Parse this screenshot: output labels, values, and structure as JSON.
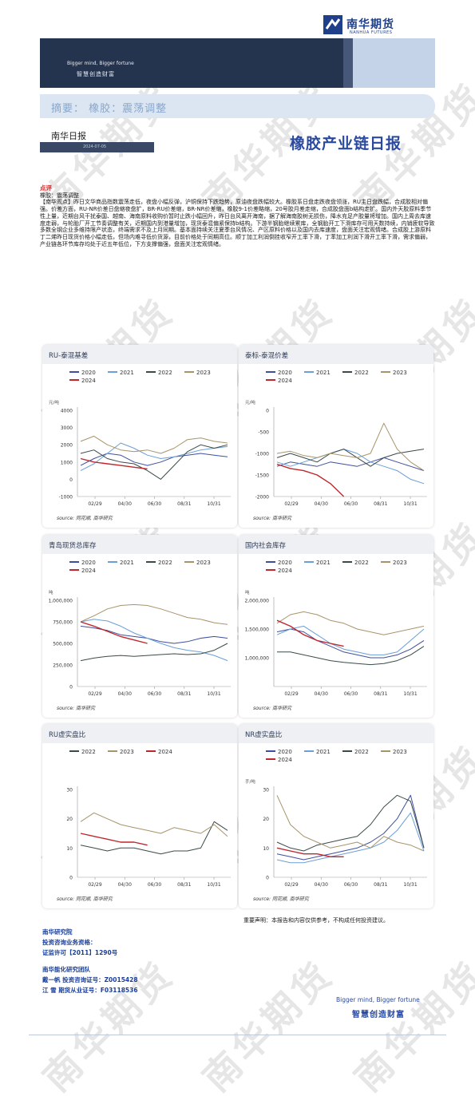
{
  "header": {
    "slogan_en": "Bigger mind, Bigger fortune",
    "slogan_cn": "智慧创造财富",
    "logo_cn": "南华期货",
    "logo_en": "NANHUA FUTURES"
  },
  "summary": {
    "text": "摘要：  橡胶：震荡调整"
  },
  "report": {
    "daily_label": "南华日报",
    "date": "2024-07-05",
    "title": "橡胶产业链日报"
  },
  "commentary": {
    "label": "点评",
    "line1": "橡胶：震荡调整",
    "body": "【南华观点】昨日文华商品指数震荡走低，夜盘小幅反弹，沪铜保持下跌趋势，原油夜盘跌幅较大。橡胶系日盘走跌夜盘领涨，RU主日盘跌幅，合成胶相对偏强。价差方面，RU-NR价差日盘缩夜盘扩，BR-RU价差缩，BR-NR价差缩，橡胶9-1价差略缩，20号胶月差走缩，合成胶盘面b结构走扩。国内外天胶原料季节性上量，近期台风干扰泰国、越南、海南原料收购价暂时止跌小幅回升，昨日台风离开海南，据了解海南胶树无损伤，降水充足产胶量将增加。国内上周去库速度走弱，与轮胎厂开工节奏调整有关，近期国内到港量增加，现货泰混偏紧保持b结构。下游半钢胎继续累库，全钢胎开工下滑库存可用天数持续，内销疲软导致多数全钢企业多维持限产状态，终端需求不及上月同期。基本面持续关注夏季台风情况、产区原料价格以及国内去库速度，盘面关注宏观情绪。合成胶上游原料丁二烯昨日现货价格小幅走低，但场内难寻低价货源，目前价格处于同期高位。顺丁加工利润倒挂收窄开工率下滑，丁苯加工利润下滑开工率下滑，需求偏弱，产业链各环节库存均处于近五年低位，下方支撑偏强，盘面关注宏观情绪。"
  },
  "charts": [
    {
      "title": "RU-泰混基差",
      "source": "source:  同花顺, 南华研究",
      "chart_data": {
        "type": "line",
        "unit": "元/吨",
        "ylim": [
          -1000,
          4000
        ],
        "yticks": [
          "4000",
          "3000",
          "2000",
          "1000",
          "0",
          "-1000"
        ],
        "xticks": [
          "02/29",
          "04/30",
          "06/30",
          "08/31",
          "10/31"
        ],
        "series": [
          {
            "name": "2020",
            "color": "#3f4fa0",
            "values": [
              800,
              1200,
              1500,
              1400,
              1000,
              800,
              1000,
              1300,
              1400,
              1500,
              1400,
              1300
            ]
          },
          {
            "name": "2021",
            "color": "#6a9fd8",
            "values": [
              500,
              900,
              1500,
              2100,
              1800,
              1400,
              1200,
              1300,
              1500,
              1700,
              1800,
              1900
            ]
          },
          {
            "name": "2022",
            "color": "#3a4a4a",
            "values": [
              1500,
              1700,
              1200,
              1000,
              900,
              500,
              0,
              800,
              1600,
              2000,
              1800,
              2000
            ]
          },
          {
            "name": "2023",
            "color": "#a8946a",
            "values": [
              2200,
              2500,
              2000,
              1700,
              1600,
              1700,
              1500,
              1800,
              2300,
              2400,
              2200,
              2100
            ]
          },
          {
            "name": "2024",
            "color": "#c0272d",
            "values": [
              1200,
              1000,
              900,
              800,
              700,
              600
            ]
          }
        ]
      }
    },
    {
      "title": "泰标-泰混价差",
      "source": "source:  南华研究",
      "chart_data": {
        "type": "line",
        "unit": "元/吨",
        "ylim": [
          -2000,
          0
        ],
        "yticks": [
          "0",
          "-500",
          "-1000",
          "-1500",
          "-2000"
        ],
        "xticks": [
          "02/29",
          "04/30",
          "06/30",
          "08/31",
          "10/31"
        ],
        "series": [
          {
            "name": "2020",
            "color": "#3f4fa0",
            "values": [
              -1300,
              -1200,
              -1250,
              -1300,
              -1200,
              -1250,
              -1300,
              -1200,
              -1100,
              -1200,
              -1300,
              -1400
            ]
          },
          {
            "name": "2021",
            "color": "#6a9fd8",
            "values": [
              -1200,
              -1300,
              -1200,
              -1100,
              -1000,
              -900,
              -1000,
              -1200,
              -1300,
              -1400,
              -1600,
              -1700
            ]
          },
          {
            "name": "2022",
            "color": "#3a4a4a",
            "values": [
              -1100,
              -1000,
              -1100,
              -1200,
              -1000,
              -900,
              -1100,
              -1300,
              -1100,
              -1000,
              -950,
              -900
            ]
          },
          {
            "name": "2023",
            "color": "#a8946a",
            "values": [
              -1000,
              -950,
              -1050,
              -1100,
              -1000,
              -1050,
              -1100,
              -1000,
              -300,
              -900,
              -1200,
              -1400
            ]
          },
          {
            "name": "2024",
            "color": "#c0272d",
            "values": [
              -1250,
              -1350,
              -1400,
              -1500,
              -1700,
              -2000
            ]
          }
        ]
      }
    },
    {
      "title": "青岛现货总库存",
      "source": "source:  南华研究",
      "chart_data": {
        "type": "line",
        "unit": "吨",
        "ylim": [
          0,
          1000000
        ],
        "yticks": [
          "1,000,000",
          "750,000",
          "500,000",
          "250,000",
          "0"
        ],
        "xticks": [
          "02/29",
          "04/30",
          "06/30",
          "08/31",
          "10/31"
        ],
        "series": [
          {
            "name": "2020",
            "color": "#3f4fa0",
            "values": [
              700000,
              680000,
              650000,
              600000,
              580000,
              560000,
              520000,
              500000,
              520000,
              560000,
              580000,
              560000
            ]
          },
          {
            "name": "2021",
            "color": "#6a9fd8",
            "values": [
              750000,
              780000,
              760000,
              700000,
              620000,
              560000,
              500000,
              450000,
              420000,
              400000,
              360000,
              300000
            ]
          },
          {
            "name": "2022",
            "color": "#3a4a4a",
            "values": [
              300000,
              330000,
              350000,
              360000,
              350000,
              360000,
              370000,
              380000,
              370000,
              380000,
              420000,
              500000
            ]
          },
          {
            "name": "2023",
            "color": "#a8946a",
            "values": [
              750000,
              820000,
              900000,
              940000,
              950000,
              940000,
              900000,
              850000,
              800000,
              780000,
              740000,
              720000
            ]
          },
          {
            "name": "2024",
            "color": "#c0272d",
            "values": [
              750000,
              700000,
              640000,
              580000,
              540000,
              500000
            ]
          }
        ]
      }
    },
    {
      "title": "国内社会库存",
      "source": "source:  南华研究",
      "chart_data": {
        "type": "line",
        "unit": "吨",
        "ylim": [
          500000,
          2000000
        ],
        "yticks": [
          "2,000,000",
          "1,500,000",
          "1,000,000"
        ],
        "xticks": [
          "02/29",
          "04/30",
          "06/30",
          "08/31",
          "10/31"
        ],
        "series": [
          {
            "name": "2020",
            "color": "#3f4fa0",
            "values": [
              1450000,
              1500000,
              1450000,
              1300000,
              1200000,
              1100000,
              1050000,
              1000000,
              1000000,
              1050000,
              1150000,
              1300000
            ]
          },
          {
            "name": "2021",
            "color": "#6a9fd8",
            "values": [
              1400000,
              1500000,
              1550000,
              1400000,
              1250000,
              1150000,
              1100000,
              1050000,
              1050000,
              1100000,
              1300000,
              1500000
            ]
          },
          {
            "name": "2022",
            "color": "#3a4a4a",
            "values": [
              1100000,
              1100000,
              1050000,
              1000000,
              950000,
              920000,
              900000,
              880000,
              900000,
              950000,
              1050000,
              1200000
            ]
          },
          {
            "name": "2023",
            "color": "#a8946a",
            "values": [
              1600000,
              1750000,
              1800000,
              1750000,
              1650000,
              1600000,
              1500000,
              1450000,
              1400000,
              1450000,
              1500000,
              1550000
            ]
          },
          {
            "name": "2024",
            "color": "#c0272d",
            "values": [
              1650000,
              1550000,
              1400000,
              1300000,
              1250000,
              1200000
            ]
          }
        ]
      }
    },
    {
      "title": "RU虚实盘比",
      "source": "source:  同花顺, 南华研究",
      "chart_data": {
        "type": "line",
        "ylim": [
          0,
          30
        ],
        "yticks": [
          "30",
          "20",
          "10",
          "0"
        ],
        "xticks": [
          "02/29",
          "04/30",
          "06/30",
          "08/31",
          "10/31"
        ],
        "series": [
          {
            "name": "2022",
            "color": "#3a4a4a",
            "values": [
              11,
              10,
              9,
              10,
              10,
              9,
              8,
              9,
              9,
              10,
              19,
              16
            ]
          },
          {
            "name": "2023",
            "color": "#a8946a",
            "values": [
              19,
              22,
              20,
              18,
              17,
              16,
              15,
              17,
              16,
              15,
              18,
              14
            ]
          },
          {
            "name": "2024",
            "color": "#c0272d",
            "values": [
              15,
              14,
              13,
              12,
              12,
              11
            ]
          }
        ]
      }
    },
    {
      "title": "NR虚实盘比",
      "source": "source:  同花顺, 南华研究",
      "chart_data": {
        "type": "line",
        "unit": "手/吨",
        "ylim": [
          0,
          30
        ],
        "yticks": [
          "30",
          "20",
          "10",
          "0"
        ],
        "xticks": [
          "02/29",
          "04/30",
          "06/30",
          "08/31",
          "10/31"
        ],
        "series": [
          {
            "name": "2020",
            "color": "#3f4fa0",
            "values": [
              8,
              7,
              6,
              7,
              8,
              9,
              10,
              12,
              15,
              20,
              28,
              10
            ]
          },
          {
            "name": "2021",
            "color": "#6a9fd8",
            "values": [
              6,
              5,
              5,
              6,
              7,
              8,
              9,
              10,
              12,
              16,
              22,
              9
            ]
          },
          {
            "name": "2022",
            "color": "#3a4a4a",
            "values": [
              12,
              10,
              9,
              11,
              12,
              13,
              14,
              18,
              24,
              28,
              26,
              10
            ]
          },
          {
            "name": "2023",
            "color": "#a8946a",
            "values": [
              28,
              18,
              14,
              12,
              10,
              11,
              12,
              10,
              14,
              12,
              11,
              9
            ]
          },
          {
            "name": "2024",
            "color": "#c0272d",
            "values": [
              10,
              9,
              8,
              8,
              7,
              7
            ]
          }
        ]
      }
    }
  ],
  "disclaimer": "重要声明：本报告和内容仅供参考，不构成任何投资建议。",
  "footer": {
    "line1": "南华研究院",
    "line2": "投资咨询业务资格：",
    "line3": "证监许可【2011】1290号",
    "line4": "南华能化研究团队",
    "line5": "戴一帆 投资咨询证号：Z0015428",
    "line6": "江   雪 期货从业证号：F03118536",
    "slogan_en": "Bigger mind, Bigger fortune",
    "slogan_cn": "智慧创造财富"
  },
  "watermark_text": "南华期货"
}
